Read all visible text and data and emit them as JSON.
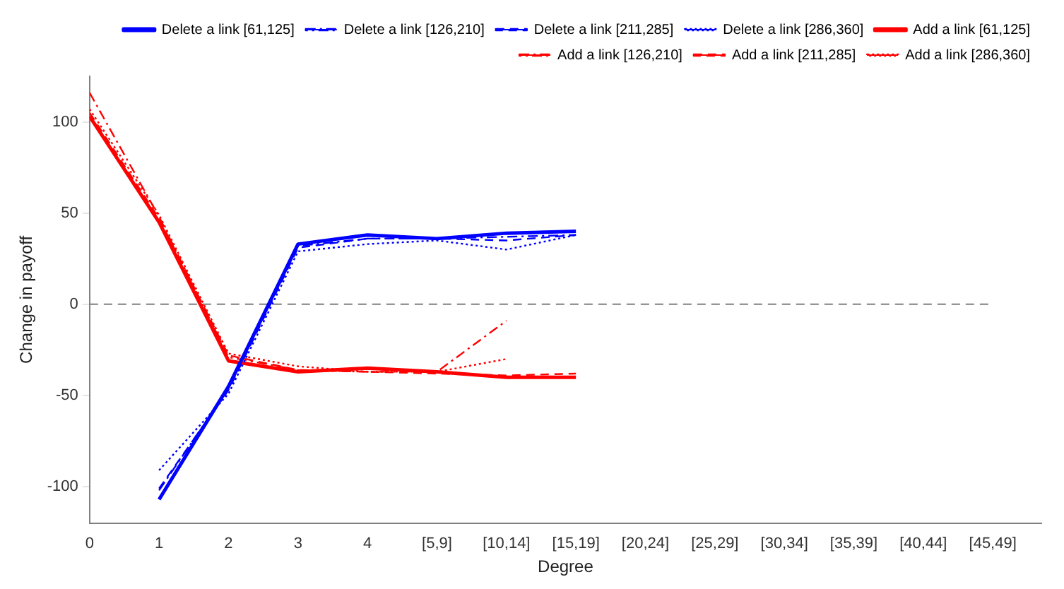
{
  "chart_data": {
    "type": "line",
    "xlabel": "Degree",
    "ylabel": "Change in payoff",
    "categories": [
      "0",
      "1",
      "2",
      "3",
      "4",
      "[5,9]",
      "[10,14]",
      "[15,19]",
      "[20,24]",
      "[25,29]",
      "[30,34]",
      "[35,39]",
      "[40,44]",
      "[45,49]"
    ],
    "ylim": [
      -120,
      125
    ],
    "yticks": [
      -100,
      -50,
      0,
      50,
      100
    ],
    "grid": false,
    "legend": "top right",
    "marker": "none",
    "ref_lines": [
      {
        "axis": "y",
        "value": 0,
        "color": "#808080",
        "line_style": "dashed"
      }
    ],
    "series": [
      {
        "name": "Delete a link [61,125]",
        "color": "#0000ff",
        "line_style": "solid",
        "values": [
          null,
          -107,
          -45,
          33,
          38,
          36,
          39,
          40,
          null,
          null,
          null,
          null,
          null,
          null
        ]
      },
      {
        "name": "Delete a link [126,210]",
        "color": "#0000ff",
        "line_style": "dashdot",
        "values": [
          null,
          -102,
          -46,
          32,
          36,
          36,
          37,
          38,
          null,
          null,
          null,
          null,
          null,
          null
        ]
      },
      {
        "name": "Delete a link [211,285]",
        "color": "#0000ff",
        "line_style": "dashed",
        "values": [
          null,
          -101,
          -47,
          31,
          36,
          36,
          35,
          38,
          null,
          null,
          null,
          null,
          null,
          null
        ]
      },
      {
        "name": "Delete a link [286,360]",
        "color": "#0000ff",
        "line_style": "dotted",
        "values": [
          null,
          -91,
          -49,
          29,
          33,
          35,
          30,
          38,
          null,
          null,
          null,
          null,
          null,
          null
        ]
      },
      {
        "name": "Add a link [61,125]",
        "color": "#ff0000",
        "line_style": "solid",
        "values": [
          103,
          45,
          -31,
          -37,
          -35,
          -37,
          -40,
          -40,
          null,
          null,
          null,
          null,
          null,
          null
        ]
      },
      {
        "name": "Add a link [126,210]",
        "color": "#ff0000",
        "line_style": "dashdot",
        "values": [
          116,
          48,
          -29,
          -36,
          -37,
          -37,
          -9,
          null,
          null,
          null,
          null,
          null,
          null,
          null
        ]
      },
      {
        "name": "Add a link [211,285]",
        "color": "#ff0000",
        "line_style": "dashed",
        "values": [
          105,
          47,
          -28,
          -36,
          -37,
          -38,
          -39,
          -38,
          null,
          null,
          null,
          null,
          null,
          null
        ]
      },
      {
        "name": "Add a link [286,360]",
        "color": "#ff0000",
        "line_style": "dotted",
        "values": [
          107,
          49,
          -27,
          -34,
          -37,
          -37,
          -30,
          null,
          null,
          null,
          null,
          null,
          null,
          null
        ]
      }
    ]
  }
}
